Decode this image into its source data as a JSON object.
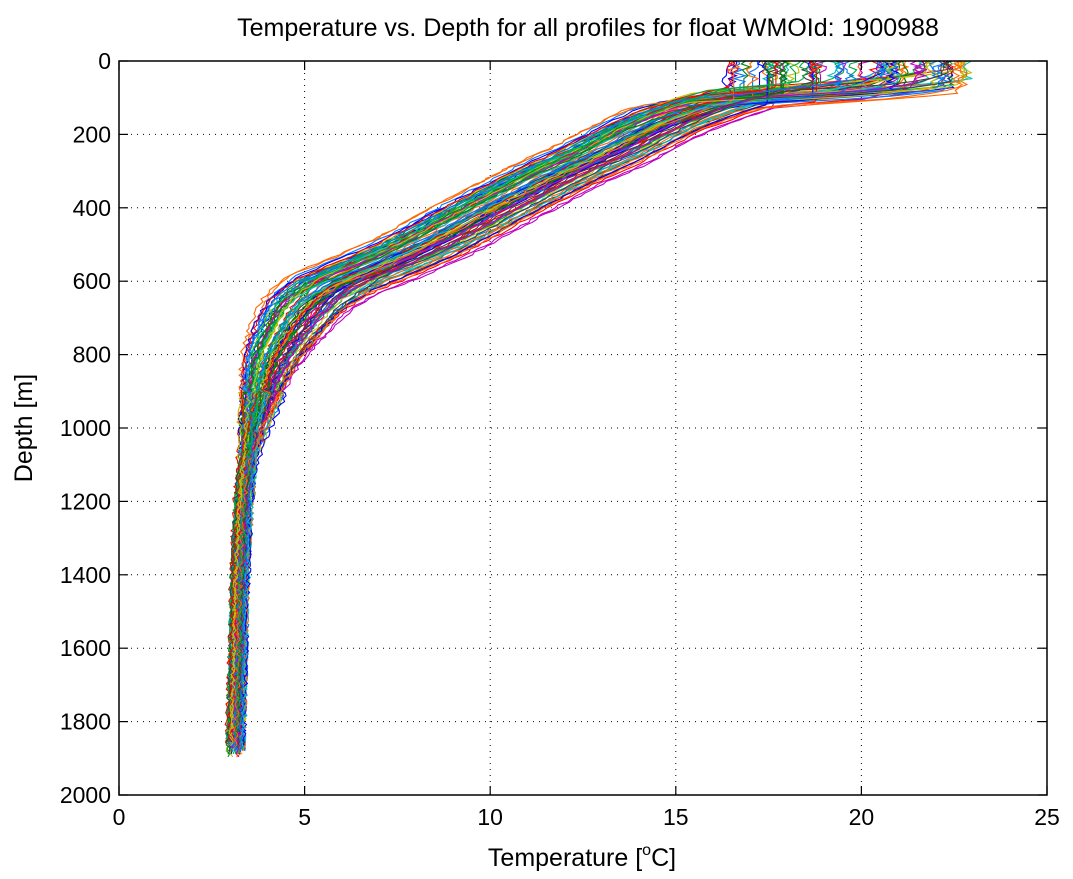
{
  "chart_data": {
    "type": "line",
    "title": "Temperature vs. Depth for all profiles for float WMOId: 1900988",
    "xlabel": "Temperature [°C]",
    "xlabel_parts": {
      "main": "Temperature [",
      "sup": "o",
      "unit": "C]"
    },
    "ylabel": "Depth [m]",
    "xlim": [
      0,
      25
    ],
    "ylim": [
      0,
      2000
    ],
    "y_reversed": true,
    "grid": true,
    "x_ticks": [
      "0",
      "5",
      "10",
      "15",
      "20",
      "25"
    ],
    "y_ticks": [
      "0",
      "200",
      "400",
      "600",
      "800",
      "1000",
      "1200",
      "1400",
      "1600",
      "1800",
      "2000"
    ],
    "colors": [
      "#0000ff",
      "#008000",
      "#ff0000",
      "#00bfbf",
      "#bf00bf",
      "#bfbf00",
      "#404040",
      "#ff6600",
      "#0077ff",
      "#00aa44"
    ],
    "profile_count": 90,
    "mean_profile": {
      "depth": [
        0,
        50,
        80,
        100,
        130,
        160,
        200,
        250,
        300,
        400,
        500,
        550,
        600,
        650,
        700,
        800,
        900,
        1000,
        1100,
        1200,
        1300,
        1400,
        1500,
        1600,
        1700,
        1800,
        1850
      ],
      "temperature": [
        20.0,
        19.8,
        18.5,
        16.3,
        15.4,
        14.6,
        13.8,
        12.9,
        11.8,
        9.9,
        8.1,
        7.0,
        5.8,
        5.1,
        4.7,
        4.1,
        3.8,
        3.6,
        3.45,
        3.35,
        3.3,
        3.25,
        3.22,
        3.2,
        3.18,
        3.15,
        3.13
      ]
    }
  }
}
